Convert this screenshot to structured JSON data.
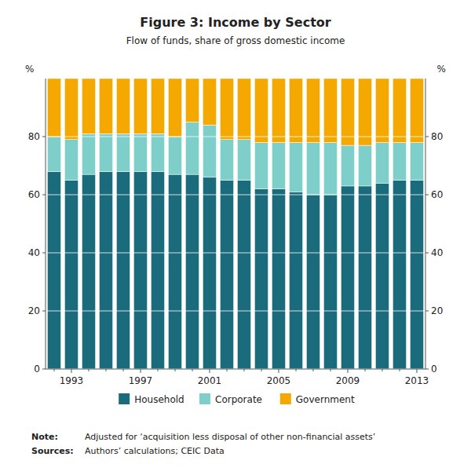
{
  "chart_data": {
    "type": "bar",
    "stacked": true,
    "title": "Figure 3: Income by Sector",
    "subtitle": "Flow of funds, share of gross domestic income",
    "categories": [
      null,
      "1993",
      null,
      null,
      null,
      "1997",
      null,
      null,
      null,
      "2001",
      null,
      null,
      null,
      "2005",
      null,
      null,
      null,
      "2009",
      null,
      null,
      null,
      "2013"
    ],
    "series": [
      {
        "name": "Household",
        "color": "#1a6b7c",
        "values": [
          68,
          65,
          67,
          68,
          68,
          68,
          68,
          67,
          67,
          66,
          65,
          65,
          62,
          62,
          61,
          60,
          60,
          63,
          63,
          64,
          65,
          65
        ]
      },
      {
        "name": "Corporate",
        "color": "#7ececa",
        "values": [
          12,
          14,
          14,
          13,
          13,
          13,
          13,
          13,
          18,
          18,
          14,
          14,
          16,
          16,
          17,
          18,
          18,
          14,
          14,
          14,
          13,
          13
        ]
      },
      {
        "name": "Government",
        "color": "#f5a800",
        "values": [
          20,
          21,
          19,
          19,
          19,
          19,
          19,
          20,
          15,
          16,
          21,
          21,
          22,
          22,
          22,
          22,
          22,
          23,
          23,
          22,
          22,
          22
        ]
      }
    ],
    "ylim": [
      0,
      100
    ],
    "yticks": [
      0,
      20,
      40,
      60,
      80
    ],
    "y2lim": [
      0,
      100
    ],
    "y2ticks": [
      0,
      20,
      40,
      60,
      80
    ],
    "ylabel": "%",
    "y2label": "%",
    "grid": true,
    "legend": "bottom",
    "note_label": "Note:",
    "note_text": "Adjusted for ‘acquisition less disposal of other non-financial assets’",
    "sources_label": "Sources:",
    "sources_text": "Authors’ calculations; CEIC Data"
  }
}
